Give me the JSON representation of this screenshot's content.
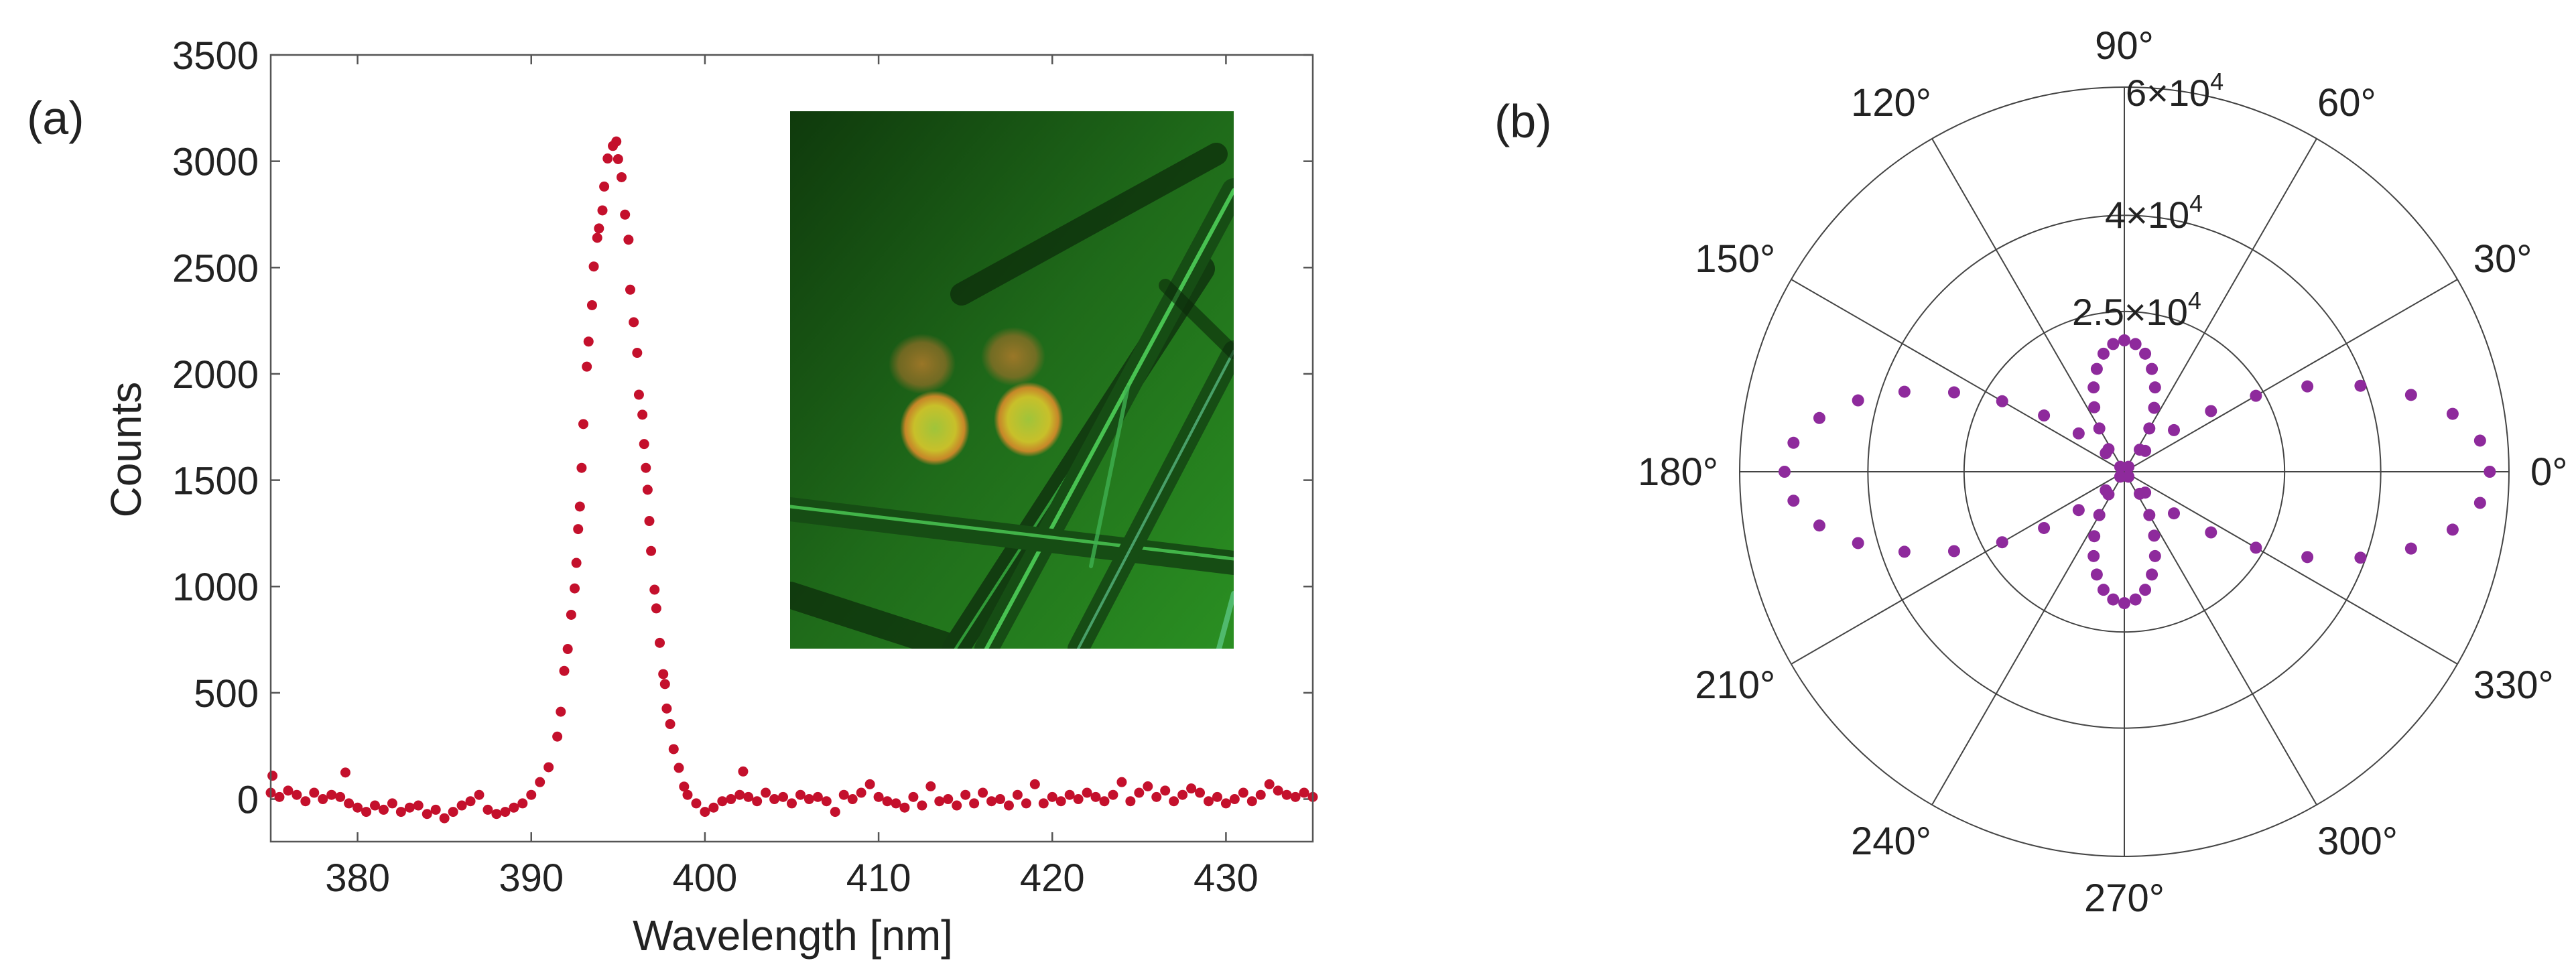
{
  "chart_data": [
    {
      "type": "scatter",
      "panel_label": "(a)",
      "xlabel": "Wavelength [nm]",
      "ylabel": "Counts",
      "xlim": [
        375,
        435
      ],
      "ylim": [
        -200,
        3500
      ],
      "xticks": [
        380,
        390,
        400,
        410,
        420,
        430
      ],
      "xtick_labels": [
        "380",
        "390",
        "400",
        "410",
        "420",
        "430"
      ],
      "yticks": [
        0,
        500,
        1000,
        1500,
        2000,
        2500,
        3000,
        3500
      ],
      "ytick_labels": [
        "0",
        "500",
        "1000",
        "1500",
        "2000",
        "2500",
        "3000",
        "3500"
      ],
      "grid": false,
      "marker_color": "#c4102c",
      "inset": "fluorescence micrograph (green background, crossing fibers, four orange-yellow spots)",
      "points": [
        [
          375.1,
          110
        ],
        [
          375,
          30
        ],
        [
          375.5,
          10
        ],
        [
          376,
          40
        ],
        [
          376.5,
          20
        ],
        [
          377,
          -10
        ],
        [
          377.5,
          30
        ],
        [
          378,
          0
        ],
        [
          378.5,
          20
        ],
        [
          379,
          10
        ],
        [
          379.3,
          125
        ],
        [
          379.5,
          -20
        ],
        [
          380,
          -40
        ],
        [
          380.5,
          -60
        ],
        [
          381,
          -30
        ],
        [
          381.5,
          -50
        ],
        [
          382,
          -20
        ],
        [
          382.5,
          -60
        ],
        [
          383,
          -40
        ],
        [
          383.5,
          -30
        ],
        [
          384,
          -70
        ],
        [
          384.5,
          -50
        ],
        [
          385,
          -90
        ],
        [
          385.5,
          -60
        ],
        [
          386,
          -30
        ],
        [
          386.5,
          -10
        ],
        [
          387,
          20
        ],
        [
          387.5,
          -50
        ],
        [
          388,
          -70
        ],
        [
          388.5,
          -60
        ],
        [
          389,
          -40
        ],
        [
          389.5,
          -20
        ],
        [
          390,
          20
        ],
        [
          390.5,
          80
        ],
        [
          391,
          150
        ],
        [
          391.5,
          294
        ],
        [
          391.7,
          411
        ],
        [
          391.9,
          603
        ],
        [
          392.1,
          706
        ],
        [
          392.3,
          867
        ],
        [
          392.5,
          991
        ],
        [
          392.6,
          1111
        ],
        [
          392.7,
          1270
        ],
        [
          392.8,
          1376
        ],
        [
          392.9,
          1558
        ],
        [
          393.0,
          1764
        ],
        [
          393.2,
          2034
        ],
        [
          393.3,
          2152
        ],
        [
          393.5,
          2323
        ],
        [
          393.6,
          2505
        ],
        [
          393.8,
          2640
        ],
        [
          393.9,
          2684
        ],
        [
          394.1,
          2769
        ],
        [
          394.2,
          2881
        ],
        [
          394.4,
          3013
        ],
        [
          394.7,
          3072
        ],
        [
          394.9,
          3093
        ],
        [
          395.0,
          3010
        ],
        [
          395.2,
          2925
        ],
        [
          395.4,
          2749
        ],
        [
          395.6,
          2631
        ],
        [
          395.7,
          2396
        ],
        [
          395.9,
          2243
        ],
        [
          396.1,
          2099
        ],
        [
          396.2,
          1902
        ],
        [
          396.4,
          1808
        ],
        [
          396.5,
          1670
        ],
        [
          396.6,
          1558
        ],
        [
          396.7,
          1455
        ],
        [
          396.8,
          1308
        ],
        [
          396.9,
          1167
        ],
        [
          397.1,
          985
        ],
        [
          397.2,
          897
        ],
        [
          397.4,
          735
        ],
        [
          397.6,
          588
        ],
        [
          397.7,
          541
        ],
        [
          397.8,
          426
        ],
        [
          398.0,
          353
        ],
        [
          398.2,
          235
        ],
        [
          398.5,
          147
        ],
        [
          398.8,
          59
        ],
        [
          399,
          20
        ],
        [
          399.5,
          -20
        ],
        [
          400,
          -60
        ],
        [
          400.5,
          -40
        ],
        [
          401,
          -10
        ],
        [
          401.5,
          0
        ],
        [
          402,
          20
        ],
        [
          402.2,
          130
        ],
        [
          402.5,
          10
        ],
        [
          403,
          -10
        ],
        [
          403.5,
          30
        ],
        [
          404,
          0
        ],
        [
          404.5,
          10
        ],
        [
          405,
          -20
        ],
        [
          405.5,
          20
        ],
        [
          406,
          0
        ],
        [
          406.5,
          10
        ],
        [
          407,
          -10
        ],
        [
          407.5,
          -60
        ],
        [
          408,
          20
        ],
        [
          408.5,
          0
        ],
        [
          409,
          30
        ],
        [
          409.5,
          70
        ],
        [
          410,
          10
        ],
        [
          410.5,
          -10
        ],
        [
          411,
          -20
        ],
        [
          411.5,
          -40
        ],
        [
          412,
          10
        ],
        [
          412.5,
          -30
        ],
        [
          413,
          60
        ],
        [
          413.5,
          -10
        ],
        [
          414,
          0
        ],
        [
          414.5,
          -30
        ],
        [
          415,
          20
        ],
        [
          415.5,
          -20
        ],
        [
          416,
          30
        ],
        [
          416.5,
          -10
        ],
        [
          417,
          0
        ],
        [
          417.5,
          -30
        ],
        [
          418,
          20
        ],
        [
          418.5,
          -20
        ],
        [
          419,
          70
        ],
        [
          419.5,
          -20
        ],
        [
          420,
          10
        ],
        [
          420.5,
          -10
        ],
        [
          421,
          20
        ],
        [
          421.5,
          0
        ],
        [
          422,
          30
        ],
        [
          422.5,
          10
        ],
        [
          423,
          -10
        ],
        [
          423.5,
          20
        ],
        [
          424,
          80
        ],
        [
          424.5,
          -10
        ],
        [
          425,
          30
        ],
        [
          425.5,
          60
        ],
        [
          426,
          10
        ],
        [
          426.5,
          40
        ],
        [
          427,
          -10
        ],
        [
          427.5,
          20
        ],
        [
          428,
          50
        ],
        [
          428.5,
          30
        ],
        [
          429,
          -10
        ],
        [
          429.5,
          10
        ],
        [
          430,
          -20
        ],
        [
          430.5,
          0
        ],
        [
          431,
          30
        ],
        [
          431.5,
          -10
        ],
        [
          432,
          20
        ],
        [
          432.5,
          70
        ],
        [
          433,
          40
        ],
        [
          433.5,
          20
        ],
        [
          434,
          10
        ],
        [
          434.5,
          30
        ],
        [
          435,
          10
        ]
      ]
    },
    {
      "type": "polar-scatter",
      "panel_label": "(b)",
      "rlim": [
        0,
        60000
      ],
      "angle_ticks": [
        0,
        30,
        60,
        90,
        120,
        150,
        180,
        210,
        240,
        270,
        300,
        330
      ],
      "angle_tick_labels": [
        "0°",
        "30°",
        "60°",
        "90°",
        "120°",
        "150°",
        "180°",
        "210°",
        "240°",
        "270°",
        "300°",
        "330°"
      ],
      "radial_ticks": [
        25000,
        40000,
        60000
      ],
      "radial_tick_labels": [
        {
          "base": "2.5×10",
          "exponent": "4"
        },
        {
          "base": "4×10",
          "exponent": "4"
        },
        {
          "base": "6×10",
          "exponent": "4"
        }
      ],
      "grid": true,
      "marker_color": "#8e2a9c",
      "theta_deg": [
        0,
        5,
        10,
        15,
        20,
        25,
        30,
        35,
        40,
        45,
        50,
        55,
        60,
        65,
        70,
        75,
        80,
        85,
        90,
        95,
        100,
        105,
        110,
        115,
        120,
        125,
        130,
        135,
        140,
        145,
        150,
        155,
        160,
        165,
        170,
        175,
        180,
        185,
        190,
        195,
        200,
        205,
        210,
        215,
        220,
        225,
        230,
        235,
        240,
        245,
        250,
        255,
        260,
        265,
        270,
        275,
        280,
        285,
        290,
        295,
        300,
        305,
        310,
        315,
        320,
        325,
        330,
        335,
        340,
        345,
        350,
        355
      ],
      "r": [
        57000,
        55700,
        52000,
        46300,
        39200,
        31500,
        23700,
        16500,
        10100,
        4600,
        1000,
        4200,
        7800,
        11000,
        14000,
        16600,
        18700,
        20000,
        20500,
        20000,
        18700,
        16600,
        14000,
        11100,
        7800,
        4300,
        1000,
        4100,
        9300,
        15300,
        22000,
        29300,
        36500,
        43000,
        48300,
        51800,
        53000,
        51800,
        48300,
        43000,
        36500,
        29300,
        22000,
        15300,
        9300,
        4100,
        1000,
        4300,
        7800,
        11100,
        14000,
        16600,
        18700,
        20000,
        20500,
        20000,
        18700,
        16600,
        14000,
        11000,
        7800,
        4200,
        1000,
        4600,
        10100,
        16500,
        23700,
        31500,
        39200,
        46300,
        52000,
        55700
      ]
    }
  ]
}
